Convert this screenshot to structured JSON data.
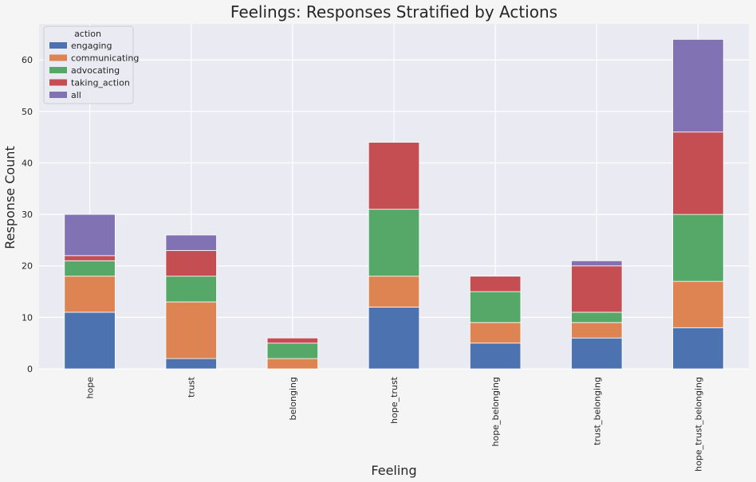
{
  "chart_data": {
    "type": "bar",
    "stacked": true,
    "title": "Feelings: Responses Stratified by Actions",
    "xlabel": "Feeling",
    "ylabel": "Response Count",
    "ylim": [
      0,
      67
    ],
    "yticks": [
      0,
      10,
      20,
      30,
      40,
      50,
      60
    ],
    "grid": true,
    "legend": {
      "title": "action",
      "placement": "top-left"
    },
    "categories": [
      "hope",
      "trust",
      "belonging",
      "hope_trust",
      "hope_belonging",
      "trust_belonging",
      "hope_trust_belonging"
    ],
    "series": [
      {
        "name": "engaging",
        "color": "#4c72b0",
        "values": [
          11,
          2,
          0,
          12,
          5,
          6,
          8
        ]
      },
      {
        "name": "communicating",
        "color": "#dd8452",
        "values": [
          7,
          11,
          2,
          6,
          4,
          3,
          9
        ]
      },
      {
        "name": "advocating",
        "color": "#55a868",
        "values": [
          3,
          5,
          3,
          13,
          6,
          2,
          13
        ]
      },
      {
        "name": "taking_action",
        "color": "#c44e52",
        "values": [
          1,
          5,
          1,
          13,
          3,
          9,
          16
        ]
      },
      {
        "name": "all",
        "color": "#8172b3",
        "values": [
          8,
          3,
          0,
          0,
          0,
          1,
          18
        ]
      }
    ]
  },
  "colors": {
    "plot_background": "#eaeaf2",
    "page_background": "#f5f5f5",
    "grid": "#ffffff"
  }
}
